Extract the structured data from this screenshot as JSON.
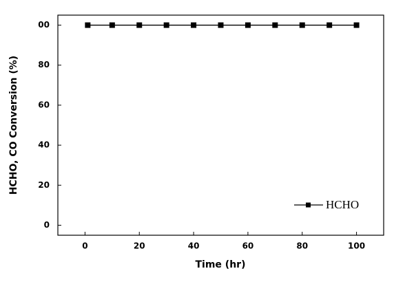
{
  "chart_data": {
    "type": "line",
    "xlabel": "Time (hr)",
    "ylabel": "HCHO, CO Conversion (%)",
    "x": [
      1,
      10,
      20,
      30,
      40,
      50,
      60,
      70,
      80,
      90,
      100
    ],
    "series": [
      {
        "name": "HCHO",
        "color": "#000000",
        "values": [
          100,
          100,
          100,
          100,
          100,
          100,
          100,
          100,
          100,
          100,
          100
        ]
      }
    ],
    "xlim": [
      -10,
      110
    ],
    "xticks": [
      0,
      20,
      40,
      60,
      80,
      100
    ],
    "ylim": [
      -5,
      105
    ],
    "yticks": [
      0,
      20,
      40,
      60,
      80,
      {
        "value": 100,
        "label": "00"
      }
    ],
    "legend": "lower right",
    "grid": false
  }
}
